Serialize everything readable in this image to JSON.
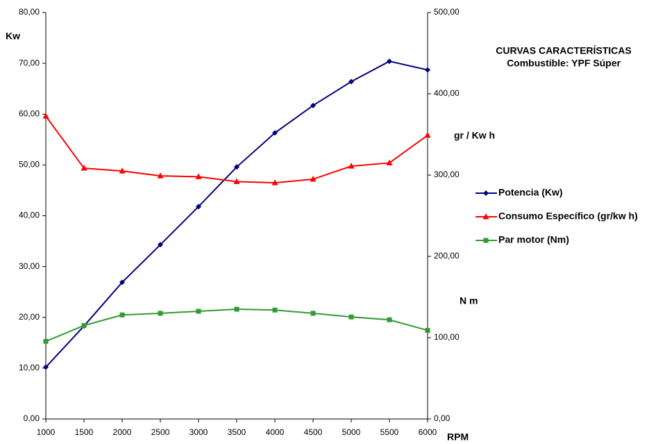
{
  "chart_data": {
    "type": "line",
    "title": "CURVAS CARACTERÍSTICAS",
    "subtitle": "Combustible: YPF Súper",
    "x_label": "RPM",
    "y_label": "Kw",
    "y2_labels": [
      "gr / Kw h",
      "N m"
    ],
    "x": [
      1000,
      1500,
      2000,
      2500,
      3000,
      3500,
      4000,
      4500,
      5000,
      5500,
      6000
    ],
    "xlim": [
      1000,
      6000
    ],
    "xticks": [
      1000,
      1500,
      2000,
      2500,
      3000,
      3500,
      4000,
      4500,
      5000,
      5500,
      6000
    ],
    "ylim": [
      0,
      80
    ],
    "yticks": [
      {
        "value": 0,
        "label": "0,00"
      },
      {
        "value": 10,
        "label": "10,00"
      },
      {
        "value": 20,
        "label": "20,00"
      },
      {
        "value": 30,
        "label": "30,00"
      },
      {
        "value": 40,
        "label": "40,00"
      },
      {
        "value": 50,
        "label": "50,00"
      },
      {
        "value": 60,
        "label": "60,00"
      },
      {
        "value": 70,
        "label": "70,00"
      },
      {
        "value": 80,
        "label": "80,00"
      }
    ],
    "y2lim": [
      0,
      500
    ],
    "y2ticks": [
      {
        "value": 0,
        "label": "0,00"
      },
      {
        "value": 100,
        "label": "100,00"
      },
      {
        "value": 200,
        "label": "200,00"
      },
      {
        "value": 300,
        "label": "300,00"
      },
      {
        "value": 400,
        "label": "400,00"
      },
      {
        "value": 500,
        "label": "500,00"
      }
    ],
    "grid": false,
    "series": [
      {
        "name": "Potencia (Kw)",
        "color": "#000080",
        "marker": "diamond",
        "axis": "y",
        "values": [
          10.2,
          18.3,
          26.9,
          34.3,
          41.8,
          49.6,
          56.3,
          61.7,
          66.4,
          70.4,
          68.7
        ]
      },
      {
        "name": "Consumo Específico (gr/kw h)",
        "color": "#ff0000",
        "marker": "triangle",
        "axis": "y2",
        "values": [
          372.5,
          308.5,
          305,
          299,
          298,
          292,
          290.5,
          295,
          311,
          315,
          349
        ]
      },
      {
        "name": "Par motor (Nm)",
        "color": "#339933",
        "marker": "square",
        "axis": "y2",
        "values": [
          95.5,
          115,
          128,
          130,
          132.5,
          135,
          134,
          130,
          125.5,
          122,
          109
        ]
      }
    ]
  }
}
